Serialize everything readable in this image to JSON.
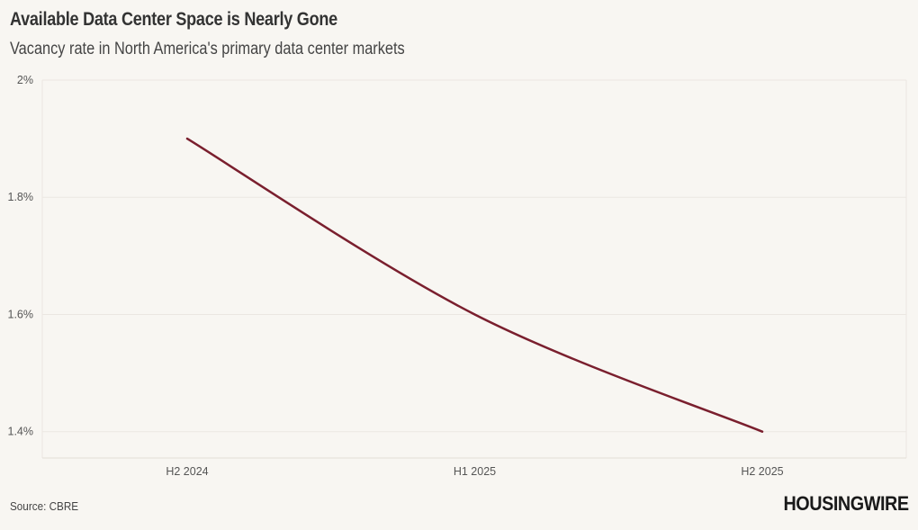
{
  "header": {
    "title": "Available Data Center Space is Nearly Gone",
    "subtitle": "Vacancy rate in North America's primary data center markets"
  },
  "footer": {
    "source": "Source: CBRE",
    "logo_text": "HOUSINGWIRE"
  },
  "colors": {
    "line": "#7a1f2e",
    "grid": "#ebe7e1",
    "background": "#f8f6f2"
  },
  "chart_data": {
    "type": "line",
    "categories": [
      "H2 2024",
      "H1 2025",
      "H2 2025"
    ],
    "series": [
      {
        "values": [
          1.9,
          1.6,
          1.4
        ]
      }
    ],
    "yticks": [
      1.4,
      1.6,
      1.8,
      2.0
    ],
    "ytick_labels": [
      "1.4%",
      "1.6%",
      "1.8%",
      "2%"
    ],
    "ylim": [
      1.355,
      2.0
    ],
    "grid": true,
    "legend": "none",
    "smooth": true
  }
}
